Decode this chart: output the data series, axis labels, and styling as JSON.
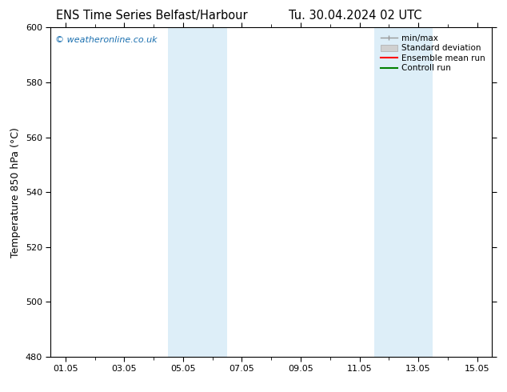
{
  "title_left": "ENS Time Series Belfast/Harbour",
  "title_right": "Tu. 30.04.2024 02 UTC",
  "ylabel": "Temperature 850 hPa (°C)",
  "watermark": "© weatheronline.co.uk",
  "ylim": [
    480,
    600
  ],
  "yticks": [
    480,
    500,
    520,
    540,
    560,
    580,
    600
  ],
  "xtick_labels": [
    "01.05",
    "03.05",
    "05.05",
    "07.05",
    "09.05",
    "11.05",
    "13.05",
    "15.05"
  ],
  "xtick_positions": [
    0,
    2,
    4,
    6,
    8,
    10,
    12,
    14
  ],
  "xminor_positions": [
    1,
    3,
    5,
    7,
    9,
    11,
    13
  ],
  "xmin": -0.5,
  "xmax": 14.5,
  "shade_bands": [
    {
      "xmin": 3.5,
      "xmax": 5.5,
      "color": "#ddeef8"
    },
    {
      "xmin": 10.5,
      "xmax": 12.5,
      "color": "#ddeef8"
    }
  ],
  "legend_items": [
    {
      "label": "min/max",
      "color": "#aaaaaa"
    },
    {
      "label": "Standard deviation",
      "color": "#cccccc"
    },
    {
      "label": "Ensemble mean run",
      "color": "red"
    },
    {
      "label": "Controll run",
      "color": "green"
    }
  ],
  "background_color": "#ffffff",
  "plot_bg_color": "#ffffff",
  "title_fontsize": 10.5,
  "label_fontsize": 9,
  "tick_fontsize": 8,
  "watermark_color": "#1a6faf",
  "watermark_fontsize": 8,
  "legend_fontsize": 7.5
}
